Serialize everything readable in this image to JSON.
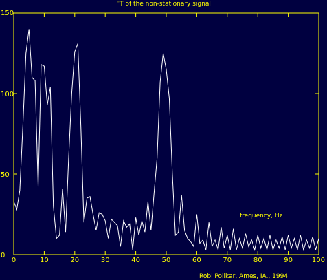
{
  "chart_data": {
    "type": "line",
    "title": "FT of the non-stationary signal",
    "annotation": "frequency, Hz",
    "credit": "Robi Polikar, Ames, IA., 1994",
    "xlabel": "",
    "ylabel": "",
    "xlim": [
      0,
      100
    ],
    "ylim": [
      0,
      150
    ],
    "xticks": [
      0,
      10,
      20,
      30,
      40,
      50,
      60,
      70,
      80,
      90,
      100
    ],
    "yticks": [
      0,
      50,
      100,
      150
    ],
    "grid": false,
    "colors": {
      "background": "#000040",
      "axes": "#ffff00",
      "text": "#ffff00",
      "line": "#ffffff"
    },
    "series": [
      {
        "x": [
          0,
          1,
          2,
          3,
          4,
          5,
          6,
          7,
          8,
          9,
          10,
          11,
          12,
          13,
          14,
          15,
          16,
          17,
          18,
          19,
          20,
          21,
          22,
          23,
          24,
          25,
          26,
          27,
          28,
          29,
          30,
          31,
          32,
          33,
          34,
          35,
          36,
          37,
          38,
          39,
          40,
          41,
          42,
          43,
          44,
          45,
          46,
          47,
          48,
          49,
          50,
          51,
          52,
          53,
          54,
          55,
          56,
          57,
          58,
          59,
          60,
          61,
          62,
          63,
          64,
          65,
          66,
          67,
          68,
          69,
          70,
          71,
          72,
          73,
          74,
          75,
          76,
          77,
          78,
          79,
          80,
          81,
          82,
          83,
          84,
          85,
          86,
          87,
          88,
          89,
          90,
          91,
          92,
          93,
          94,
          95,
          96,
          97,
          98,
          99,
          100
        ],
        "y": [
          33,
          28,
          40,
          80,
          125,
          140,
          110,
          108,
          42,
          118,
          117,
          93,
          104,
          30,
          10,
          12,
          41,
          14,
          60,
          100,
          126,
          131,
          80,
          20,
          35,
          36,
          25,
          15,
          26,
          25,
          21,
          10,
          22,
          20,
          18,
          5,
          21,
          17,
          19,
          3,
          23,
          12,
          21,
          14,
          33,
          15,
          38,
          60,
          107,
          125,
          115,
          97,
          50,
          12,
          14,
          37,
          15,
          10,
          8,
          5,
          25,
          7,
          9,
          3,
          20,
          5,
          9,
          3,
          17,
          4,
          12,
          3,
          16,
          3,
          10,
          4,
          13,
          5,
          9,
          3,
          12,
          4,
          10,
          3,
          12,
          3,
          9,
          4,
          11,
          3,
          12,
          4,
          10,
          3,
          12,
          3,
          9,
          4,
          11,
          3,
          10
        ]
      }
    ]
  }
}
